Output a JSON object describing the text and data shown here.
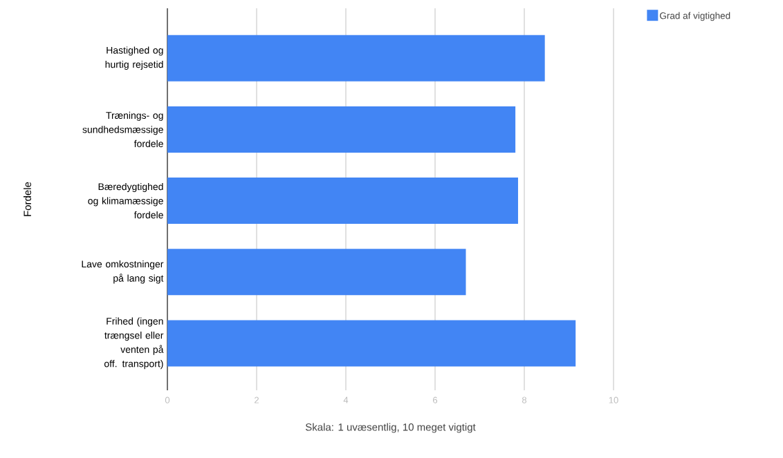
{
  "chart_data": {
    "type": "bar",
    "orientation": "horizontal",
    "categories": [
      "Hastighed og hurtig rejsetid",
      "Trænings- og sundhedsmæssige fordele",
      "Bæredygtighed og klimamæssige fordele",
      "Lave omkostninger på lang sigt",
      "Frihed (ingen trængsel eller venten på off. transport)"
    ],
    "series": [
      {
        "name": "Grad af vigtighed",
        "color": "#4285f4",
        "values": [
          8.46,
          7.8,
          7.86,
          6.69,
          9.15
        ]
      }
    ],
    "xlabel": "Skala: 1 uvæsentlig, 10 meget vigtigt",
    "ylabel": "Fordele",
    "xlim": [
      0,
      10
    ],
    "xticks": [
      0,
      2,
      4,
      6,
      8,
      10
    ],
    "grid": "x",
    "legend": "top right"
  }
}
